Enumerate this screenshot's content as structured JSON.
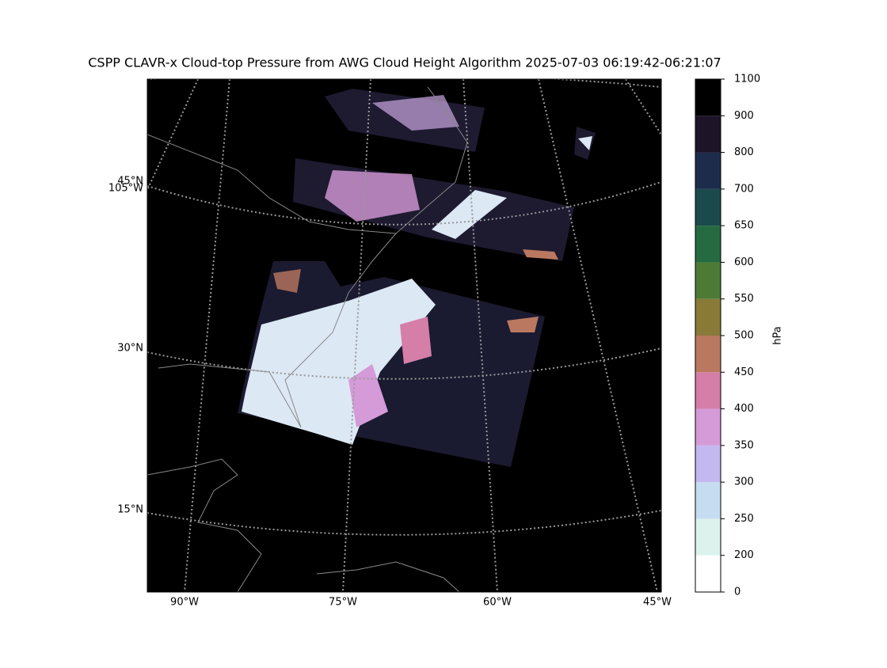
{
  "map": {
    "title": "CSPP CLAVR-x Cloud-top Pressure from AWG Cloud Height Algorithm 2025-07-03 06:19:42-06:21:07",
    "lat_labels": [
      "45°N",
      "30°N",
      "15°N"
    ],
    "lon_left_label": "105°W",
    "lon_labels": [
      "90°W",
      "75°W",
      "60°W",
      "45°W"
    ]
  },
  "colorbar": {
    "label": "hPa",
    "ticks": [
      0,
      200,
      250,
      300,
      350,
      400,
      450,
      500,
      550,
      600,
      650,
      700,
      800,
      900,
      1100
    ],
    "colors": [
      "#ffffff",
      "#dcf2ec",
      "#c6dcf0",
      "#c4b8f0",
      "#d59ad8",
      "#d47ea8",
      "#ba7860",
      "#897a38",
      "#4d7a34",
      "#256a40",
      "#1a4a4c",
      "#1e2c4c",
      "#1e1428",
      "#000000"
    ]
  }
}
